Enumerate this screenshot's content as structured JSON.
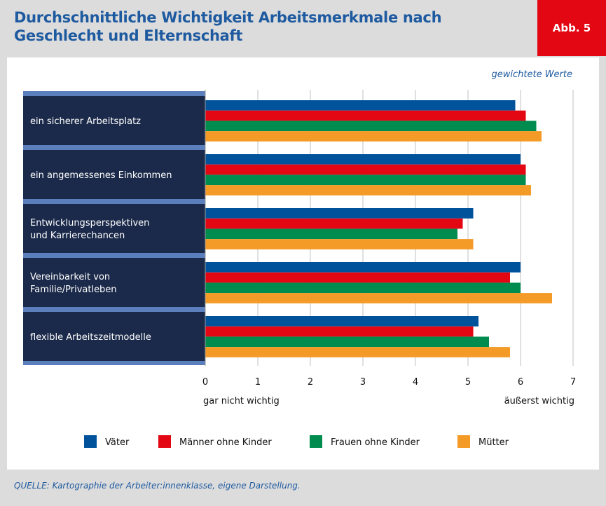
{
  "title": "Durchschnittliche Wichtigkeit Arbeitsmerkmale nach Geschlecht und Elternschaft",
  "figure_label": "Abb. 5",
  "source": "QUELLE: Kartographie der Arbeiter:innenklasse, eigene Darstellung.",
  "chart_data": {
    "type": "bar",
    "orientation": "horizontal",
    "subtitle": "gewichtete Werte",
    "categories": [
      [
        "ein sicherer Arbeitsplatz"
      ],
      [
        "ein angemessenes Einkommen"
      ],
      [
        "Entwicklungsperspektiven",
        "und Karrierechancen"
      ],
      [
        "Vereinbarkeit von",
        "Familie/Privatleben"
      ],
      [
        "flexible Arbeitszeitmodelle"
      ]
    ],
    "series": [
      {
        "name": "Väter",
        "color": "#00529b",
        "values": [
          5.9,
          6.0,
          5.1,
          6.0,
          5.2
        ]
      },
      {
        "name": "Männer ohne Kinder",
        "color": "#e30613",
        "values": [
          6.1,
          6.1,
          4.9,
          5.8,
          5.1
        ]
      },
      {
        "name": "Frauen ohne Kinder",
        "color": "#008c4f",
        "values": [
          6.3,
          6.1,
          4.8,
          6.0,
          5.4
        ]
      },
      {
        "name": "Mütter",
        "color": "#f39a27",
        "values": [
          6.4,
          6.2,
          5.1,
          6.6,
          5.8
        ]
      }
    ],
    "xlim": [
      0,
      7
    ],
    "xticks": [
      "0",
      "1",
      "2",
      "3",
      "4",
      "5",
      "6",
      "7"
    ],
    "xlabel_min": "gar nicht wichtig",
    "xlabel_max": "äußerst wichtig",
    "grid": true,
    "legend": "bottom"
  }
}
